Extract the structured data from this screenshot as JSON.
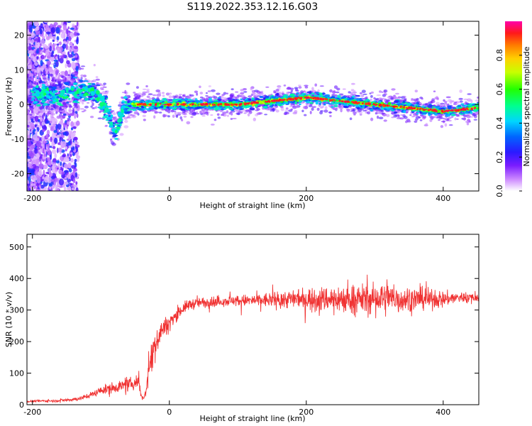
{
  "figure": {
    "title": "S119.2022.353.12.16.G03"
  },
  "chart_data": [
    {
      "type": "heatmap",
      "xlabel": "Height of straight line (km)",
      "ylabel": "Frequency (Hz)",
      "xlim": [
        -208,
        452
      ],
      "ylim": [
        -25,
        24
      ],
      "x_ticks": [
        -200,
        0,
        200,
        400
      ],
      "y_ticks": [
        -20,
        -10,
        0,
        10,
        20
      ],
      "x_tick_labels": [
        "-200",
        "0",
        "200",
        "400"
      ],
      "y_tick_labels": [
        "-20",
        "-10",
        "0",
        "10",
        "20"
      ],
      "colorbar": {
        "label": "Normalized spectral amplitude",
        "range": [
          0,
          1
        ],
        "ticks": [
          0.0,
          0.2,
          0.4,
          0.6,
          0.8
        ],
        "tick_labels": [
          "0.0",
          "0.2",
          "0.4",
          "0.6",
          "0.8"
        ],
        "colormap": "rainbow"
      },
      "ridge": {
        "x": [
          -195,
          -180,
          -165,
          -150,
          -135,
          -120,
          -105,
          -95,
          -85,
          -78,
          -72,
          -65,
          -55,
          -45,
          -30,
          0,
          50,
          100,
          150,
          200,
          250,
          300,
          350,
          400,
          452
        ],
        "freq": [
          3,
          3,
          2,
          3,
          4,
          4,
          3,
          0,
          -5,
          -8,
          -4,
          0,
          0,
          0,
          0,
          0,
          0,
          0,
          1,
          2,
          1,
          0,
          -1,
          -2,
          -1
        ]
      }
    },
    {
      "type": "line",
      "xlabel": "Height of straight line (km)",
      "ylabel": "SNR (10 * v/v)",
      "xlim": [
        -208,
        452
      ],
      "ylim": [
        0,
        540
      ],
      "x_ticks": [
        -200,
        0,
        200,
        400
      ],
      "y_ticks": [
        0,
        100,
        200,
        300,
        400,
        500
      ],
      "x_tick_labels": [
        "-200",
        "0",
        "200",
        "400"
      ],
      "y_tick_labels": [
        "0",
        "100",
        "200",
        "300",
        "400",
        "500"
      ],
      "color": "#f03232",
      "series": [
        {
          "x": [
            -208,
            -190,
            -170,
            -150,
            -130,
            -110,
            -100,
            -90,
            -80,
            -70,
            -60,
            -50,
            -45,
            -40,
            -35,
            -30,
            -25,
            -20,
            -15,
            -10,
            -5,
            0,
            10,
            20,
            30,
            50,
            75,
            100,
            125,
            150,
            175,
            200,
            225,
            250,
            275,
            300,
            325,
            350,
            375,
            400,
            425,
            452
          ],
          "values": [
            10,
            12,
            12,
            15,
            20,
            35,
            45,
            50,
            55,
            60,
            62,
            70,
            75,
            20,
            30,
            120,
            160,
            200,
            220,
            240,
            250,
            260,
            285,
            305,
            318,
            325,
            328,
            330,
            330,
            332,
            335,
            335,
            335,
            335,
            335,
            335,
            335,
            335,
            335,
            335,
            340,
            340
          ],
          "noise": [
            4,
            5,
            6,
            7,
            9,
            14,
            18,
            22,
            25,
            25,
            28,
            30,
            30,
            12,
            20,
            50,
            60,
            70,
            60,
            50,
            40,
            30,
            28,
            26,
            25,
            22,
            22,
            25,
            28,
            35,
            42,
            48,
            55,
            62,
            65,
            68,
            70,
            60,
            45,
            35,
            25,
            22
          ]
        }
      ]
    }
  ]
}
